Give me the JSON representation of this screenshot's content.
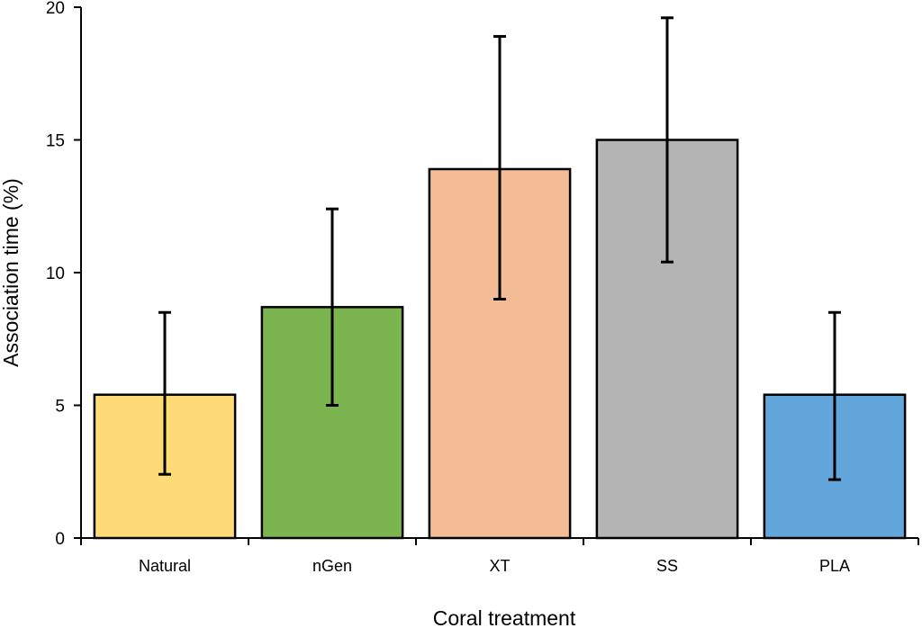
{
  "chart_data": {
    "type": "bar",
    "title": "",
    "xlabel": "Coral treatment",
    "ylabel": "Association time (%)",
    "ylim": [
      0,
      20
    ],
    "yticks": [
      0,
      5,
      10,
      15,
      20
    ],
    "categories": [
      "Natural",
      "nGen",
      "XT",
      "SS",
      "PLA"
    ],
    "values": [
      5.4,
      8.7,
      13.9,
      15.0,
      5.4
    ],
    "error_low": [
      2.4,
      5.0,
      9.0,
      10.4,
      2.2
    ],
    "error_high": [
      8.5,
      12.4,
      18.9,
      19.6,
      8.5
    ],
    "colors": [
      "#FFDB78",
      "#7CB54F",
      "#F4BC94",
      "#B4B4B4",
      "#62A6DB"
    ],
    "grid": false,
    "legend": "none"
  }
}
